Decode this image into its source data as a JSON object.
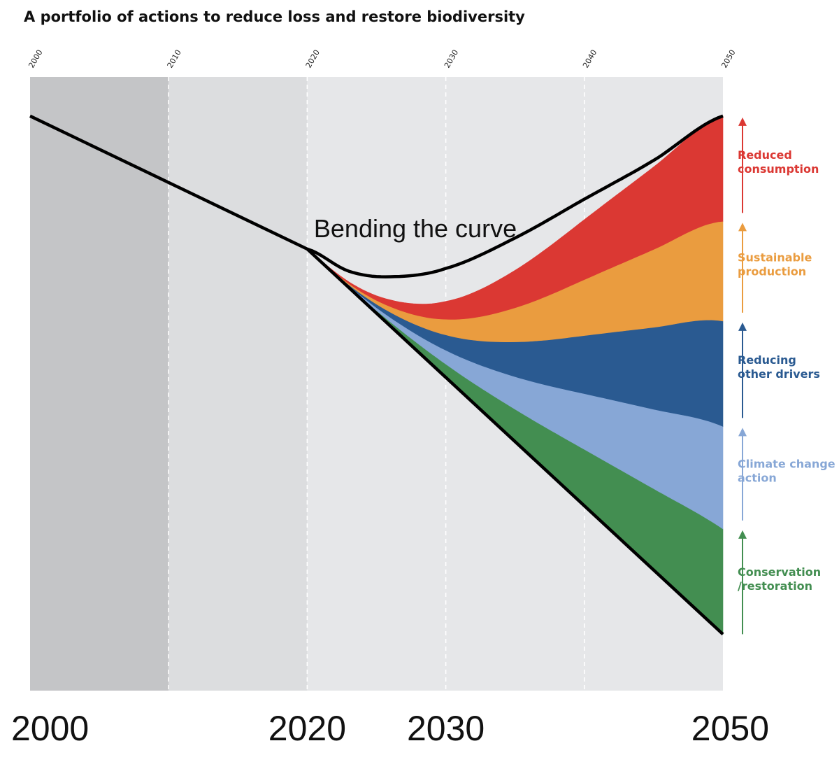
{
  "chart_data": {
    "type": "area",
    "title": "A portfolio of actions to reduce loss and restore biodiversity",
    "annotation": "Bending the curve",
    "top_ticks": [
      "2000",
      "2010",
      "2020",
      "2030",
      "2040",
      "2050"
    ],
    "bottom_ticks": [
      "2000",
      "2020",
      "2030",
      "2050"
    ],
    "xlim": [
      2000,
      2050
    ],
    "grid": true,
    "legend_position": "right",
    "shaded_periods": [
      {
        "from": 2000,
        "to": 2010,
        "color": "#c4c5c7"
      },
      {
        "from": 2010,
        "to": 2020,
        "color": "#dcdddf"
      },
      {
        "from": 2020,
        "to": 2050,
        "color": "#e6e7e9"
      }
    ],
    "baseline": {
      "name": "",
      "color": "#000000",
      "x": [
        2000,
        2020,
        2050
      ],
      "y": [
        0.96,
        0.48,
        -0.91
      ]
    },
    "bent_curve": {
      "x": [
        2020,
        2023,
        2026,
        2030,
        2035,
        2040,
        2045,
        2050
      ],
      "y": [
        0.48,
        0.4,
        0.38,
        0.41,
        0.52,
        0.66,
        0.8,
        0.96
      ]
    },
    "series": [
      {
        "name": "Conservation\n/restoration",
        "color": "#438e51",
        "x": [
          2050
        ],
        "y": [
          -0.53
        ]
      },
      {
        "name": "Climate change\naction",
        "color": "#87a7d6",
        "x": [
          2050
        ],
        "y": [
          -0.16
        ]
      },
      {
        "name": "Reducing\nother drivers",
        "color": "#2a5a91",
        "x": [
          2050
        ],
        "y": [
          0.22
        ]
      },
      {
        "name": "Sustainable\nproduction",
        "color": "#ea9c3f",
        "x": [
          2050
        ],
        "y": [
          0.58
        ]
      },
      {
        "name": "Reduced\nconsumption",
        "color": "#db3833",
        "x": [
          2050
        ],
        "y": [
          0.96
        ]
      }
    ]
  }
}
